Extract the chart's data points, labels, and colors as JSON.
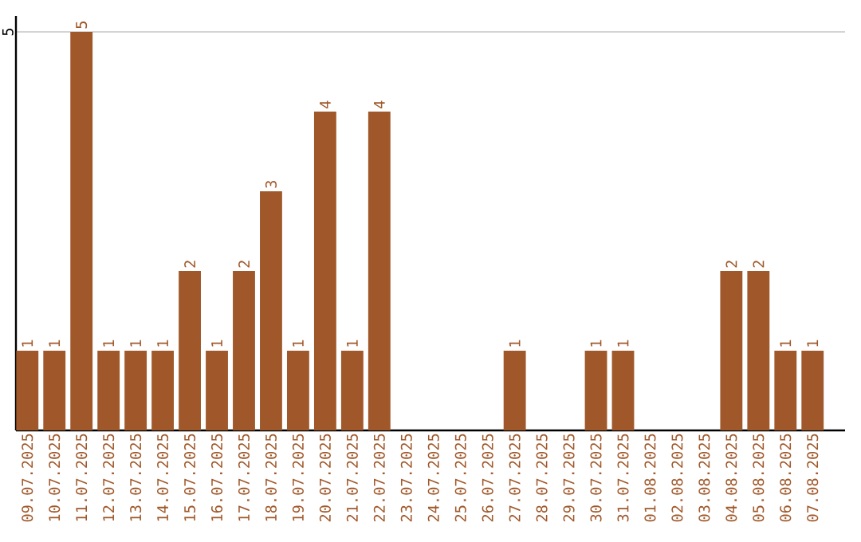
{
  "chart_data": {
    "type": "bar",
    "categories": [
      "09.07.2025",
      "10.07.2025",
      "11.07.2025",
      "12.07.2025",
      "13.07.2025",
      "14.07.2025",
      "15.07.2025",
      "16.07.2025",
      "17.07.2025",
      "18.07.2025",
      "19.07.2025",
      "20.07.2025",
      "21.07.2025",
      "22.07.2025",
      "23.07.2025",
      "24.07.2025",
      "25.07.2025",
      "26.07.2025",
      "27.07.2025",
      "28.07.2025",
      "29.07.2025",
      "30.07.2025",
      "31.07.2025",
      "01.08.2025",
      "02.08.2025",
      "03.08.2025",
      "04.08.2025",
      "05.08.2025",
      "06.08.2025",
      "07.08.2025"
    ],
    "values": [
      1,
      1,
      5,
      1,
      1,
      1,
      2,
      1,
      2,
      3,
      1,
      4,
      1,
      4,
      0,
      0,
      0,
      0,
      1,
      0,
      0,
      1,
      1,
      0,
      0,
      0,
      2,
      2,
      1,
      1
    ],
    "value_labels": [
      "1",
      "1",
      "5",
      "1",
      "1",
      "1",
      "2",
      "1",
      "2",
      "3",
      "1",
      "4",
      "1",
      "4",
      null,
      null,
      null,
      null,
      "1",
      null,
      null,
      "1",
      "1",
      null,
      null,
      null,
      "2",
      "2",
      "1",
      "1"
    ],
    "color": "#a0582a",
    "ylim": [
      0,
      5.2
    ],
    "yticks": [
      5
    ],
    "grid": "y"
  }
}
